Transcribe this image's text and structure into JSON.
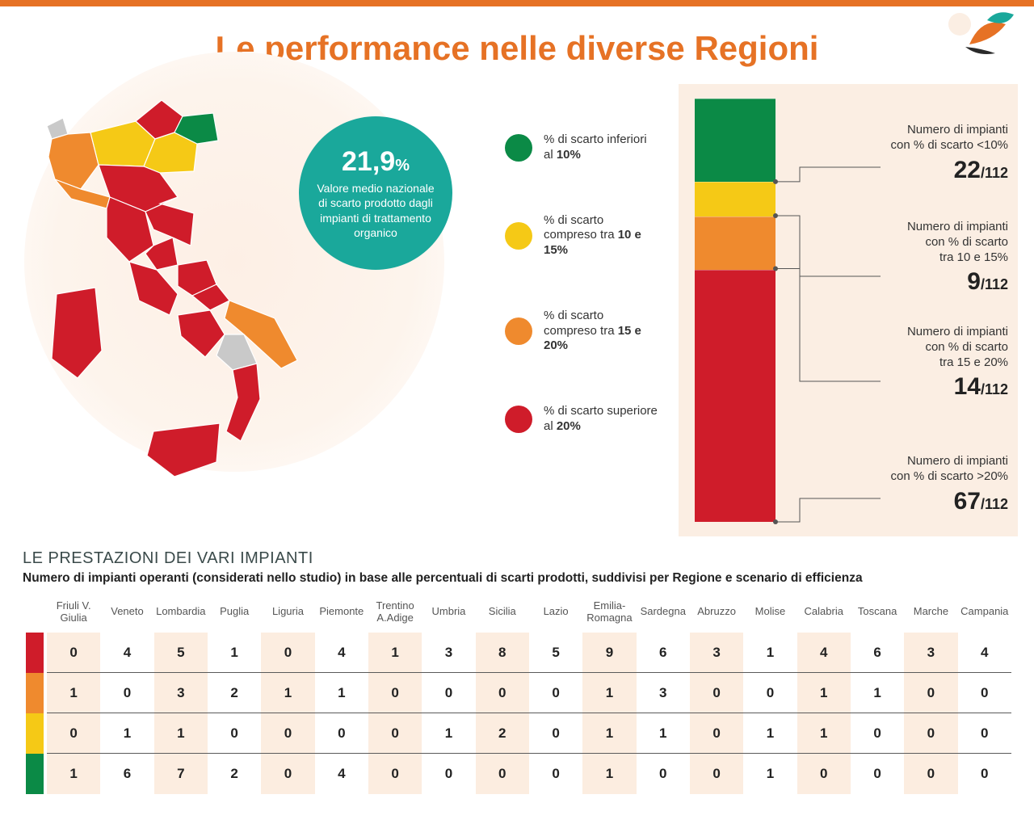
{
  "colors": {
    "accent": "#e67225",
    "green": "#0b8a46",
    "yellow": "#f5c916",
    "orange": "#ef8a2e",
    "red": "#cf1c2a",
    "teal": "#1aa89b",
    "grey": "#c9c9c9",
    "panel": "#fbeee3",
    "text": "#333333"
  },
  "title": "Le performance nelle diverse Regioni",
  "bubble": {
    "value": "21,9",
    "pct": "%",
    "text": "Valore medio nazionale di scarto prodotto dagli impianti di trattamento organico"
  },
  "legend": [
    {
      "color_key": "green",
      "text_pre": "% di scarto inferiori al ",
      "text_bold": "10%"
    },
    {
      "color_key": "yellow",
      "text_pre": "% di scarto compreso tra ",
      "text_bold": "10 e 15%"
    },
    {
      "color_key": "orange",
      "text_pre": "% di scarto compreso tra ",
      "text_bold": "15 e 20%"
    },
    {
      "color_key": "red",
      "text_pre": "% di scarto superiore al ",
      "text_bold": "20%"
    }
  ],
  "stacked_bar": {
    "total": 112,
    "segments": [
      {
        "color_key": "green",
        "value": 22,
        "label_l1": "Numero di impianti",
        "label_l2": "con % di scarto <10%"
      },
      {
        "color_key": "yellow",
        "value": 9,
        "label_l1": "Numero di impianti",
        "label_l2": "con % di scarto",
        "label_l3": "tra 10 e 15%"
      },
      {
        "color_key": "orange",
        "value": 14,
        "label_l1": "Numero di impianti",
        "label_l2": "con % di scarto",
        "label_l3": "tra 15 e 20%"
      },
      {
        "color_key": "red",
        "value": 67,
        "label_l1": "Numero di impianti",
        "label_l2": "con % di scarto >20%"
      }
    ]
  },
  "map_regions": {
    "friuli": "green",
    "veneto": "yellow",
    "lombardia": "yellow",
    "trentino": "red",
    "piemonte": "orange",
    "valle_aosta": "grey",
    "liguria": "orange",
    "emilia": "red",
    "toscana": "red",
    "umbria": "red",
    "marche": "red",
    "lazio": "red",
    "abruzzo": "red",
    "molise": "red",
    "puglia": "orange",
    "campania": "red",
    "basilicata": "grey",
    "calabria": "red",
    "sicilia": "red",
    "sardegna": "red"
  },
  "table": {
    "title": "LE PRESTAZIONI DEI VARI IMPIANTI",
    "subtitle": "Numero di impianti operanti (considerati nello studio) in base alle percentuali di scarti prodotti, suddivisi per Regione e scenario di efficienza",
    "columns": [
      "Friuli V. Giulia",
      "Veneto",
      "Lombardia",
      "Puglia",
      "Liguria",
      "Piemonte",
      "Trentino A.Adige",
      "Umbria",
      "Sicilia",
      "Lazio",
      "Emilia-Romagna",
      "Sardegna",
      "Abruzzo",
      "Molise",
      "Calabria",
      "Toscana",
      "Marche",
      "Campania"
    ],
    "rows": [
      {
        "color_key": "red",
        "values": [
          0,
          4,
          5,
          1,
          0,
          4,
          1,
          3,
          8,
          5,
          9,
          6,
          3,
          1,
          4,
          6,
          3,
          4
        ]
      },
      {
        "color_key": "orange",
        "values": [
          1,
          0,
          3,
          2,
          1,
          1,
          0,
          0,
          0,
          0,
          1,
          3,
          0,
          0,
          1,
          1,
          0,
          0
        ]
      },
      {
        "color_key": "yellow",
        "values": [
          0,
          1,
          1,
          0,
          0,
          0,
          0,
          1,
          2,
          0,
          1,
          1,
          0,
          1,
          1,
          0,
          0,
          0
        ]
      },
      {
        "color_key": "green",
        "values": [
          1,
          6,
          7,
          2,
          0,
          4,
          0,
          0,
          0,
          0,
          1,
          0,
          0,
          1,
          0,
          0,
          0,
          0
        ]
      }
    ]
  }
}
